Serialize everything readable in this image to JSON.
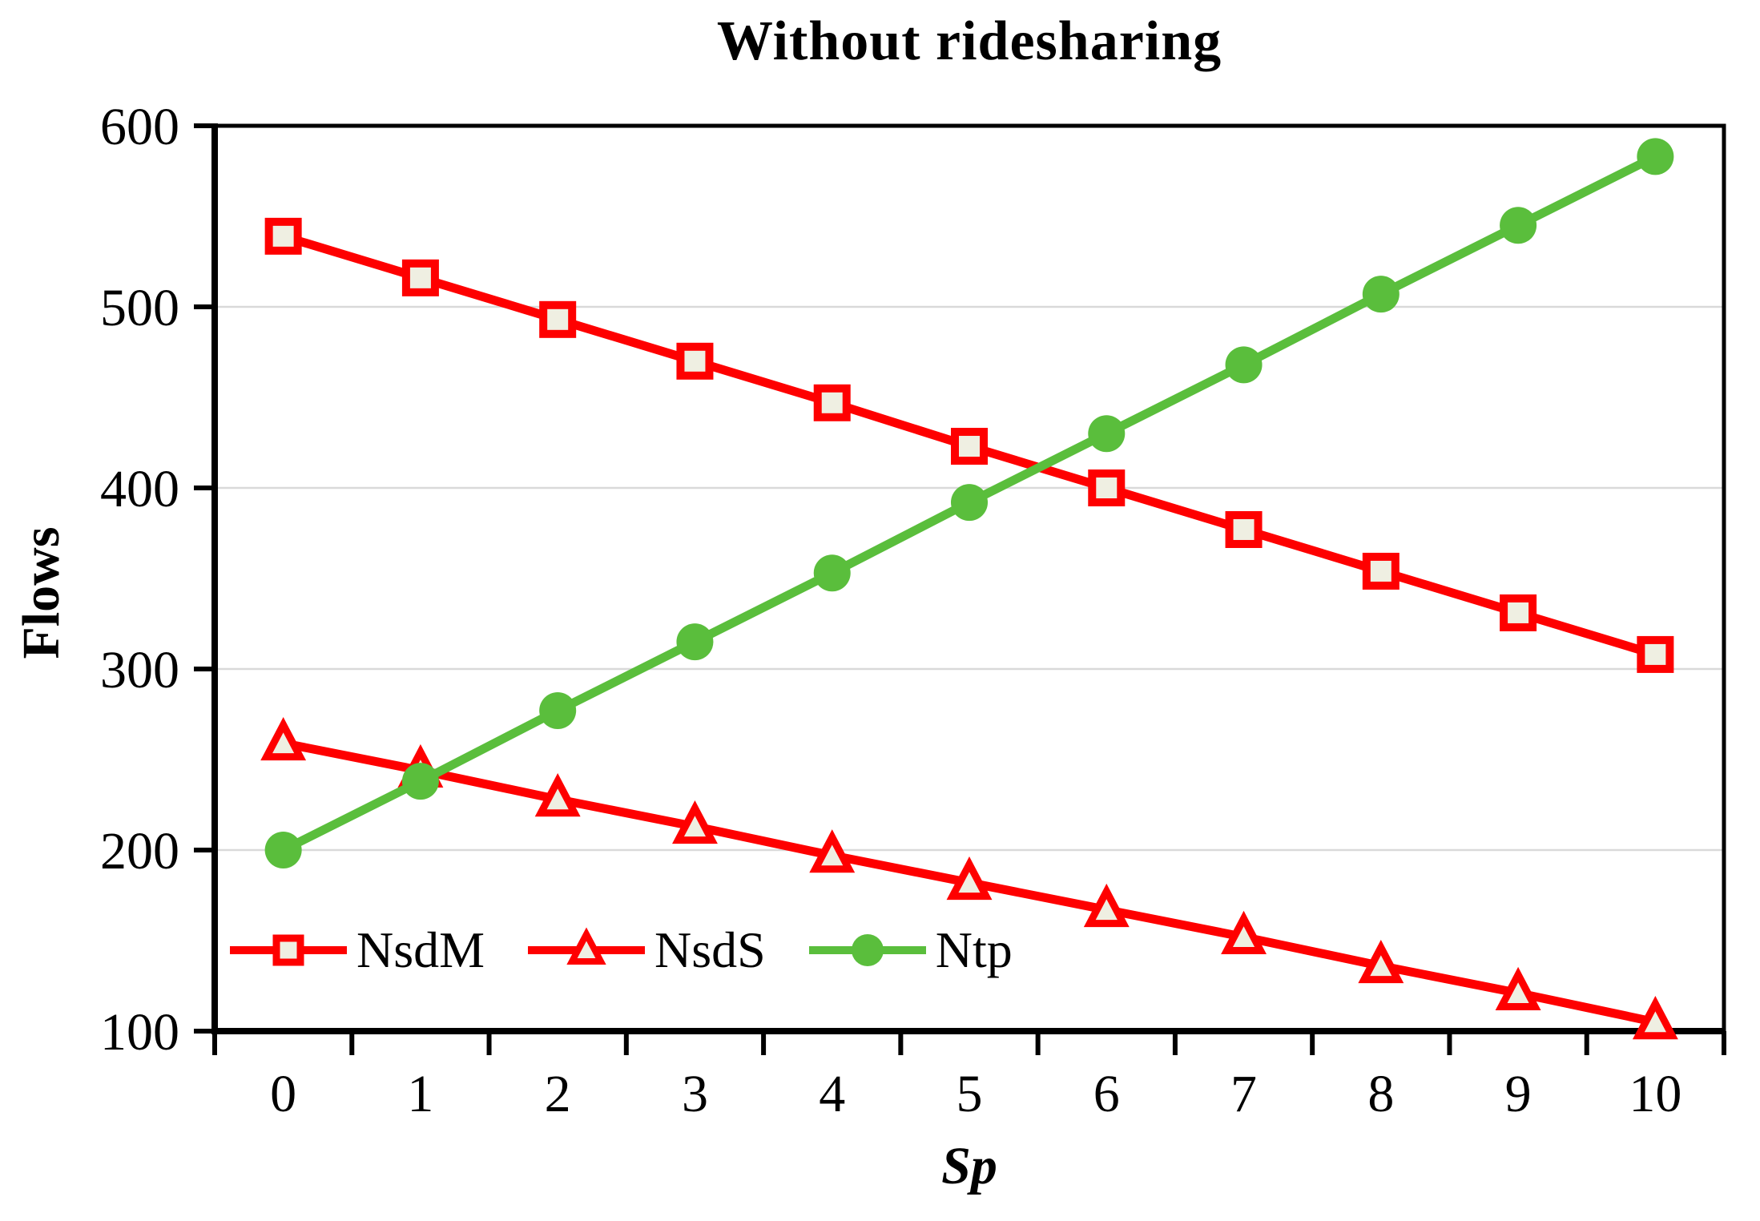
{
  "title": "Without ridesharing",
  "y_axis": {
    "label": "Flows",
    "ticks": [
      600,
      500,
      400,
      300,
      200,
      100
    ]
  },
  "x_axis": {
    "label": "Sp",
    "ticks": [
      "0",
      "1",
      "2",
      "3",
      "4",
      "5",
      "6",
      "7",
      "8",
      "9",
      "10"
    ]
  },
  "colors": {
    "red": "#FE0000",
    "green": "#5ABE3C",
    "marker_fill": "#EFEFE2",
    "gridline": "#D9D9D9",
    "axis": "#000000",
    "text": "#000000",
    "background": "#FFFFFF"
  },
  "legend": {
    "items": [
      "NsdM",
      "NsdS",
      "Ntp"
    ],
    "position": "inside-bottom-left"
  },
  "chart_data": {
    "type": "line",
    "title": "Without ridesharing",
    "xlabel": "Sp",
    "ylabel": "Flows",
    "x": [
      0,
      1,
      2,
      3,
      4,
      5,
      6,
      7,
      8,
      9,
      10
    ],
    "ylim": [
      100,
      600
    ],
    "y_tick_step": 100,
    "grid": "horizontal",
    "legend_position": "inside-bottom-left",
    "series": [
      {
        "name": "NsdM",
        "marker": "square",
        "color": "#FE0000",
        "marker_fill": "#EFEFE2",
        "values": [
          539,
          516,
          493,
          470,
          447,
          423,
          400,
          377,
          354,
          331,
          308
        ]
      },
      {
        "name": "NsdS",
        "marker": "triangle",
        "color": "#FE0000",
        "marker_fill": "#EFEFE2",
        "values": [
          259,
          244,
          228,
          213,
          197,
          182,
          167,
          152,
          136,
          121,
          105
        ]
      },
      {
        "name": "Ntp",
        "marker": "circle",
        "color": "#5ABE3C",
        "marker_fill": "#5ABE3C",
        "values": [
          200,
          238,
          277,
          315,
          353,
          392,
          430,
          468,
          507,
          545,
          583
        ]
      }
    ]
  }
}
